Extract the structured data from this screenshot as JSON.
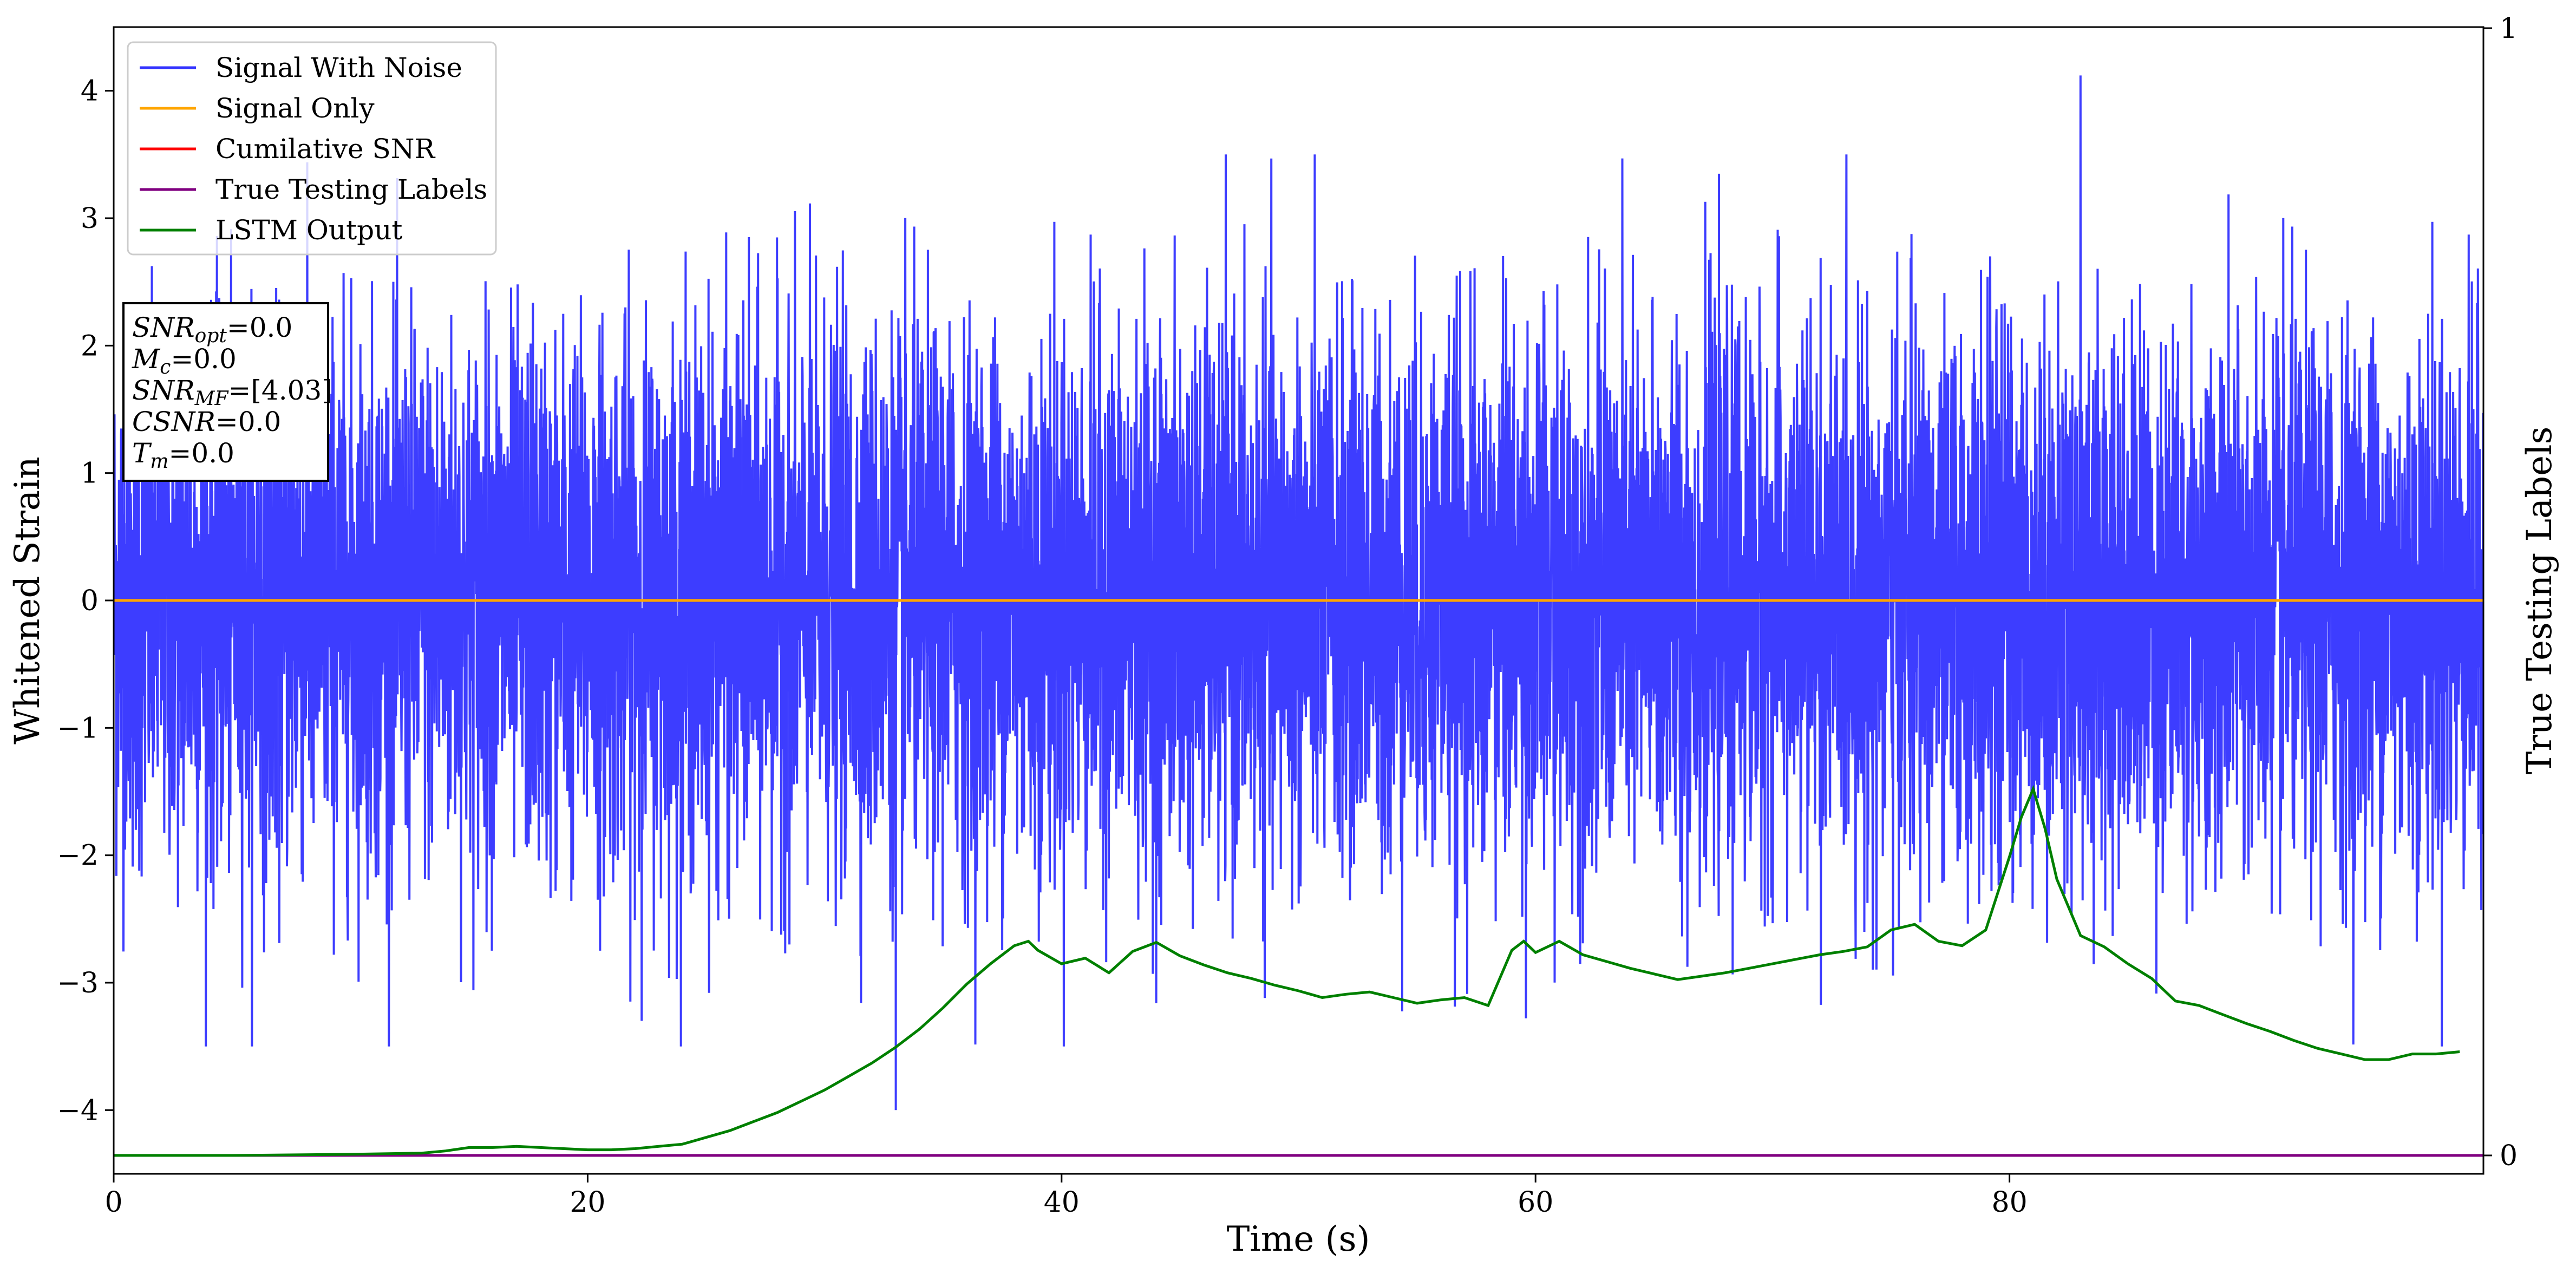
{
  "chart_data": {
    "type": "line",
    "xlabel": "Time (s)",
    "ylabel": "Whitened Strain",
    "ylabel_right": "True Testing Labels",
    "xlim": [
      0,
      100
    ],
    "ylim": [
      -4.5,
      4.5
    ],
    "ylim_right": [
      0,
      1
    ],
    "x_ticks": [
      "0",
      "20",
      "40",
      "60",
      "80"
    ],
    "y_ticks": [
      "4",
      "3",
      "2",
      "1",
      "0",
      "−1",
      "−2",
      "−3",
      "−4"
    ],
    "y_ticks_right": [
      "1",
      "0"
    ],
    "grid": false,
    "legend_position": "top-left",
    "series": [
      {
        "name": "Signal With Noise",
        "color": "#3333ff",
        "description_type": "noise",
        "x_range": [
          0,
          100
        ],
        "envelope_upper": 3.5,
        "envelope_lower": -3.5,
        "peak_max": 4.12,
        "peak_max_time": 83.0,
        "peak_min": -4.0,
        "peak_min_time": 33.0
      },
      {
        "name": "Signal Only",
        "color": "#ffa500",
        "x": [
          0,
          100
        ],
        "y": [
          0,
          0
        ]
      },
      {
        "name": "Cumilative SNR",
        "color": "#ff0000",
        "x": [],
        "y": []
      },
      {
        "name": "True Testing Labels",
        "color": "#800080",
        "axis": "right",
        "x": [
          0,
          100
        ],
        "y": [
          0,
          0
        ]
      },
      {
        "name": "LSTM Output",
        "color": "#008000",
        "axis": "right",
        "x": [
          0,
          5,
          10,
          13,
          14,
          15,
          16,
          17,
          18,
          19,
          20,
          21,
          22,
          23,
          24,
          25,
          26,
          27,
          28,
          29,
          30,
          31,
          32,
          33,
          34,
          35,
          36,
          37,
          38,
          38.6,
          39,
          40,
          41,
          42,
          43,
          44,
          45,
          46,
          47,
          48,
          49,
          50,
          51,
          52,
          53,
          54,
          55,
          56,
          57,
          58,
          59,
          59.5,
          60,
          61,
          62,
          63,
          64,
          65,
          66,
          67,
          68,
          69,
          70,
          71,
          72,
          73,
          74,
          75,
          76,
          77,
          78,
          79,
          80,
          80.5,
          81,
          81.5,
          82,
          83,
          84,
          85,
          86,
          87,
          88,
          89,
          90,
          91,
          92,
          93,
          94,
          95,
          96,
          97,
          98,
          99
        ],
        "y": [
          0.0,
          0.0,
          0.001,
          0.002,
          0.004,
          0.007,
          0.007,
          0.008,
          0.007,
          0.006,
          0.005,
          0.005,
          0.006,
          0.008,
          0.01,
          0.016,
          0.022,
          0.03,
          0.038,
          0.048,
          0.058,
          0.07,
          0.082,
          0.096,
          0.112,
          0.131,
          0.152,
          0.17,
          0.186,
          0.19,
          0.182,
          0.17,
          0.175,
          0.162,
          0.181,
          0.189,
          0.177,
          0.169,
          0.162,
          0.157,
          0.151,
          0.146,
          0.14,
          0.143,
          0.145,
          0.14,
          0.135,
          0.138,
          0.14,
          0.133,
          0.182,
          0.19,
          0.18,
          0.19,
          0.178,
          0.172,
          0.166,
          0.161,
          0.156,
          0.159,
          0.162,
          0.166,
          0.17,
          0.174,
          0.178,
          0.181,
          0.185,
          0.2,
          0.205,
          0.19,
          0.186,
          0.2,
          0.265,
          0.3,
          0.325,
          0.29,
          0.245,
          0.195,
          0.185,
          0.17,
          0.157,
          0.137,
          0.133,
          0.125,
          0.117,
          0.11,
          0.102,
          0.095,
          0.09,
          0.085,
          0.085,
          0.09,
          0.09,
          0.092
        ]
      }
    ],
    "annotation_lines": [
      {
        "label": "SNR",
        "sub": "opt",
        "value": "=0.0"
      },
      {
        "label": "M",
        "sub": "c",
        "value": "=0.0"
      },
      {
        "label": "SNR",
        "sub": "MF",
        "value": "=[4.03]"
      },
      {
        "label": "CSNR",
        "sub": "",
        "value": "=0.0"
      },
      {
        "label": "T",
        "sub": "m",
        "value": "=0.0"
      }
    ]
  }
}
